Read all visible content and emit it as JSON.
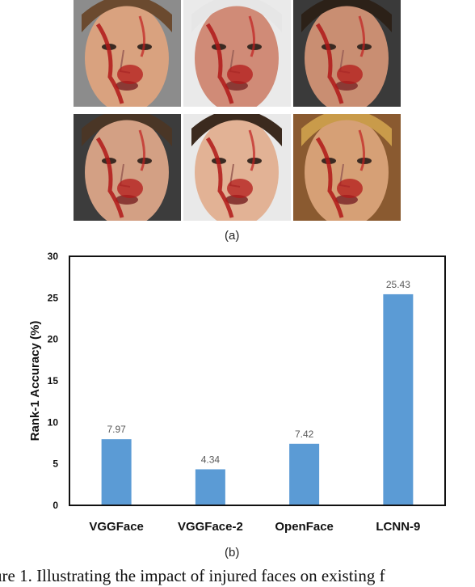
{
  "figure": {
    "label_a": "(a)",
    "label_b": "(b)",
    "caption": "ure 1. Illustrating the impact of injured faces on existing f"
  },
  "photos": [
    {
      "name": "face-photo-1",
      "skin": "#d9a27f",
      "hair": "#6b4a2f",
      "bg": "#8c8c8c"
    },
    {
      "name": "face-photo-2",
      "skin": "#d08b77",
      "hair": "#e6e6e6",
      "bg": "#eaeaea"
    },
    {
      "name": "face-photo-3",
      "skin": "#c98e72",
      "hair": "#2c2118",
      "bg": "#3a3a3a"
    },
    {
      "name": "face-photo-4",
      "skin": "#d3a084",
      "hair": "#4a3626",
      "bg": "#3c3c3c"
    },
    {
      "name": "face-photo-5",
      "skin": "#e2b295",
      "hair": "#3b2a1e",
      "bg": "#e9e9e9"
    },
    {
      "name": "face-photo-6",
      "skin": "#d6a076",
      "hair": "#c99b4a",
      "bg": "#8a5a30"
    }
  ],
  "chart_data": {
    "type": "bar",
    "categories": [
      "VGGFace",
      "VGGFace-2",
      "OpenFace",
      "LCNN-9"
    ],
    "values": [
      7.97,
      4.34,
      7.42,
      25.43
    ],
    "value_labels": [
      "7.97",
      "4.34",
      "7.42",
      "25.43"
    ],
    "ylabel": "Rank-1 Accuracy (%)",
    "xlabel": "",
    "ylim": [
      0,
      30
    ],
    "yticks": [
      "0",
      "5",
      "10",
      "15",
      "20",
      "25",
      "30"
    ],
    "bar_color": "#5b9bd5",
    "grid": false
  }
}
